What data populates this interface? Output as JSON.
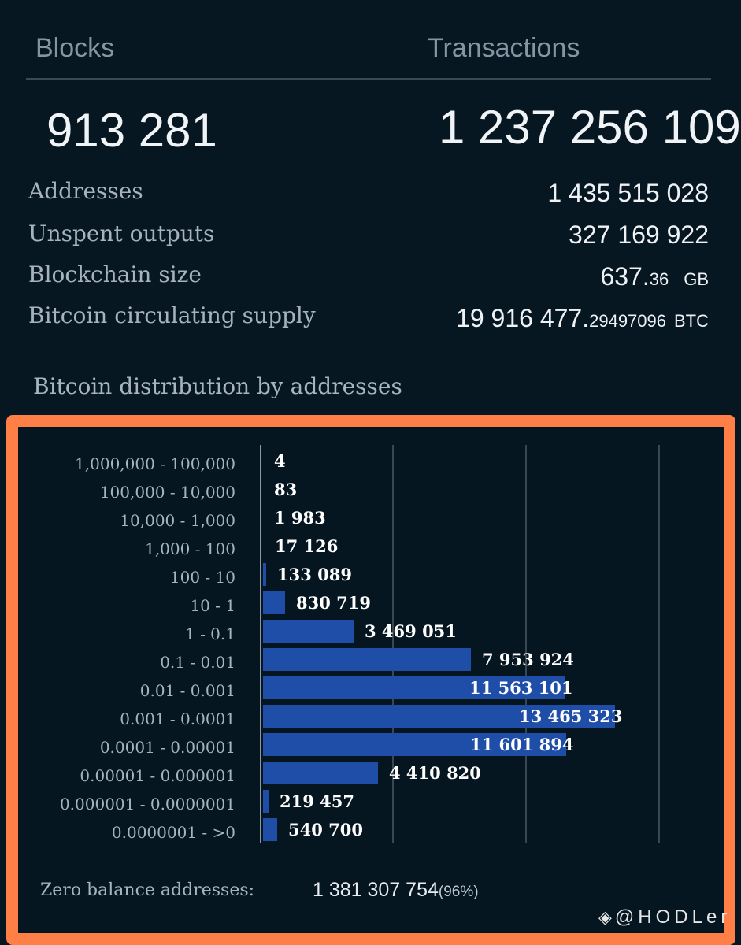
{
  "header": {
    "blocks_label": "Blocks",
    "transactions_label": "Transactions",
    "blocks_value": "913 281",
    "transactions_value": "1 237 256 109"
  },
  "stats": [
    {
      "label": "Addresses",
      "value": "1 435 515 028",
      "decimals": "",
      "unit": ""
    },
    {
      "label": "Unspent outputs",
      "value": "327 169 922",
      "decimals": "",
      "unit": ""
    },
    {
      "label": "Blockchain size",
      "value": "637.",
      "decimals": "36",
      "unit": "GB"
    },
    {
      "label": "Bitcoin circulating supply",
      "value": "19 916 477.",
      "decimals": "29497096",
      "unit": "BTC"
    }
  ],
  "distribution": {
    "title": "Bitcoin distribution by addresses",
    "zero_balance_label": "Zero balance addresses:",
    "zero_balance_value": "1 381 307 754",
    "zero_balance_pct": "(96%)"
  },
  "chart_data": {
    "type": "bar",
    "orientation": "horizontal",
    "categories": [
      "1,000,000 - 100,000",
      "100,000 - 10,000",
      "10,000 - 1,000",
      "1,000 - 100",
      "100 - 10",
      "10 - 1",
      "1 - 0.1",
      "0.1 - 0.01",
      "0.01 - 0.001",
      "0.001 - 0.0001",
      "0.0001 - 0.00001",
      "0.00001 - 0.000001",
      "0.000001 - 0.0000001",
      "0.0000001 - >0"
    ],
    "values": [
      4,
      83,
      1983,
      17126,
      133089,
      830719,
      3469051,
      7953924,
      11563101,
      13465323,
      11601894,
      4410820,
      219457,
      540700
    ],
    "value_labels": [
      "4",
      "83",
      "1 983",
      "17 126",
      "133 089",
      "830 719",
      "3 469 051",
      "7 953 924",
      "11 563 101",
      "13 465 323",
      "11 601 894",
      "4 410 820",
      "219 457",
      "540 700"
    ],
    "xlim": [
      0,
      15000000
    ],
    "grid": true,
    "bar_color": "#1f4ea8"
  },
  "watermark": {
    "icon": "binance-square-icon",
    "text": "@HODLer"
  },
  "colors": {
    "background": "#071722",
    "panel_border": "#ff7f47",
    "bar": "#1f4ea8"
  }
}
